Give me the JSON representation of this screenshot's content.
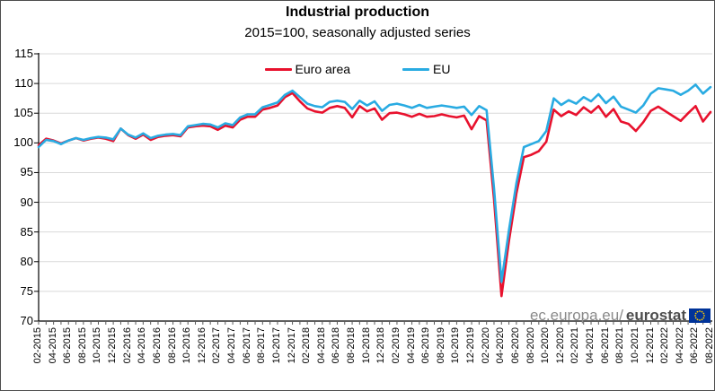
{
  "header": {
    "title": "Industrial production",
    "subtitle": "2015=100, seasonally adjusted series"
  },
  "legend": [
    {
      "label": "Euro area",
      "color": "#e8112d"
    },
    {
      "label": "EU",
      "color": "#29abe2"
    }
  ],
  "watermark": {
    "prefix": "ec.europa.eu/",
    "brand": "eurostat",
    "flag_icon": "eu-flag-icon",
    "flag_bg": "#003399",
    "flag_star_color": "#ffcc00"
  },
  "colors": {
    "gridline": "#d9d9d9",
    "axis": "#000000",
    "tick": "#595959"
  },
  "chart_data": {
    "type": "line",
    "title": "Industrial production",
    "subtitle": "2015=100, seasonally adjusted series",
    "xlabel": "",
    "ylabel": "",
    "ylim": [
      70,
      115
    ],
    "yticks": [
      115,
      110,
      105,
      100,
      95,
      90,
      85,
      80,
      75,
      70
    ],
    "grid": true,
    "legend_position": "top-center",
    "xtick_label_every": 2,
    "x": [
      "02-2015",
      "03-2015",
      "04-2015",
      "05-2015",
      "06-2015",
      "07-2015",
      "08-2015",
      "09-2015",
      "10-2015",
      "11-2015",
      "12-2015",
      "01-2016",
      "02-2016",
      "03-2016",
      "04-2016",
      "05-2016",
      "06-2016",
      "07-2016",
      "08-2016",
      "09-2016",
      "10-2016",
      "11-2016",
      "12-2016",
      "01-2017",
      "02-2017",
      "03-2017",
      "04-2017",
      "05-2017",
      "06-2017",
      "07-2017",
      "08-2017",
      "09-2017",
      "10-2017",
      "11-2017",
      "12-2017",
      "01-2018",
      "02-2018",
      "03-2018",
      "04-2018",
      "05-2018",
      "06-2018",
      "07-2018",
      "08-2018",
      "09-2018",
      "10-2018",
      "11-2018",
      "12-2018",
      "01-2019",
      "02-2019",
      "03-2019",
      "04-2019",
      "05-2019",
      "06-2019",
      "07-2019",
      "08-2019",
      "09-2019",
      "10-2019",
      "11-2019",
      "12-2019",
      "01-2020",
      "02-2020",
      "03-2020",
      "04-2020",
      "05-2020",
      "06-2020",
      "07-2020",
      "08-2020",
      "09-2020",
      "10-2020",
      "11-2020",
      "12-2020",
      "01-2021",
      "02-2021",
      "03-2021",
      "04-2021",
      "05-2021",
      "06-2021",
      "07-2021",
      "08-2021",
      "09-2021",
      "10-2021",
      "11-2021",
      "12-2021",
      "01-2022",
      "02-2022",
      "03-2022",
      "04-2022",
      "05-2022",
      "06-2022",
      "07-2022",
      "08-2022"
    ],
    "series": [
      {
        "name": "Euro area",
        "color": "#e8112d",
        "values": [
          99.6,
          100.7,
          100.4,
          99.9,
          100.4,
          100.8,
          100.4,
          100.7,
          100.9,
          100.7,
          100.3,
          102.4,
          101.3,
          100.7,
          101.4,
          100.5,
          101.0,
          101.2,
          101.3,
          101.1,
          102.6,
          102.8,
          102.9,
          102.8,
          102.2,
          102.9,
          102.6,
          103.9,
          104.4,
          104.4,
          105.6,
          105.9,
          106.3,
          107.7,
          108.4,
          107.0,
          105.8,
          105.3,
          105.1,
          105.9,
          106.2,
          105.9,
          104.3,
          106.2,
          105.3,
          105.8,
          103.9,
          105.0,
          105.1,
          104.8,
          104.4,
          104.9,
          104.4,
          104.5,
          104.8,
          104.5,
          104.3,
          104.6,
          102.3,
          104.5,
          103.8,
          90.5,
          74.2,
          83.5,
          91.5,
          97.6,
          98.0,
          98.6,
          100.2,
          105.6,
          104.5,
          105.3,
          104.7,
          106.0,
          105.1,
          106.2,
          104.4,
          105.7,
          103.6,
          103.2,
          102.0,
          103.5,
          105.4,
          106.1,
          105.3,
          104.5,
          103.7,
          105.0,
          106.2,
          103.6,
          105.2
        ]
      },
      {
        "name": "EU",
        "color": "#29abe2",
        "values": [
          99.3,
          100.5,
          100.3,
          99.8,
          100.4,
          100.8,
          100.5,
          100.8,
          101.0,
          100.9,
          100.6,
          102.4,
          101.4,
          100.9,
          101.6,
          100.8,
          101.2,
          101.4,
          101.5,
          101.3,
          102.8,
          103.0,
          103.2,
          103.1,
          102.6,
          103.3,
          103.0,
          104.3,
          104.8,
          104.8,
          106.0,
          106.4,
          106.8,
          108.1,
          108.8,
          107.7,
          106.6,
          106.2,
          106.0,
          106.9,
          107.1,
          106.9,
          105.7,
          107.1,
          106.3,
          107.0,
          105.4,
          106.4,
          106.6,
          106.3,
          105.9,
          106.4,
          105.9,
          106.1,
          106.3,
          106.1,
          105.9,
          106.1,
          104.7,
          106.2,
          105.5,
          92.3,
          76.6,
          85.3,
          93.2,
          99.3,
          99.8,
          100.3,
          102.0,
          107.5,
          106.4,
          107.2,
          106.6,
          107.7,
          107.0,
          108.2,
          106.7,
          107.8,
          106.1,
          105.6,
          105.1,
          106.3,
          108.3,
          109.2,
          109.0,
          108.8,
          108.1,
          108.8,
          109.8,
          108.3,
          109.4
        ]
      }
    ]
  }
}
